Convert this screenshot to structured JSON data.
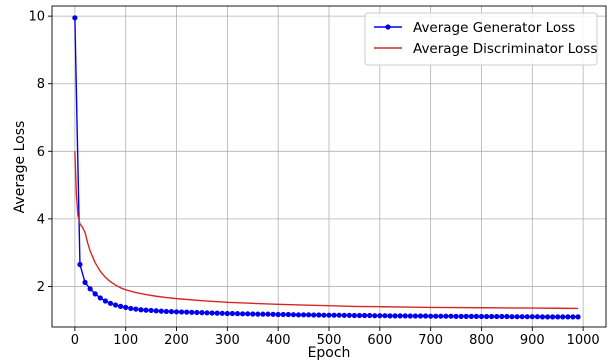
{
  "chart_data": {
    "type": "line",
    "title": "",
    "xlabel": "Epoch",
    "ylabel": "Average Loss",
    "xlim": [
      -45,
      1045
    ],
    "ylim": [
      0.8,
      10.3
    ],
    "xticks": [
      0,
      100,
      200,
      300,
      400,
      500,
      600,
      700,
      800,
      900,
      1000
    ],
    "yticks": [
      2,
      4,
      6,
      8,
      10
    ],
    "xtick_labels": [
      "0",
      "100",
      "200",
      "300",
      "400",
      "500",
      "600",
      "700",
      "800",
      "900",
      "1000"
    ],
    "ytick_labels": [
      "2",
      "4",
      "6",
      "8",
      "10"
    ],
    "grid": true,
    "legend_position": "top-right",
    "series": [
      {
        "name": "Average Generator Loss",
        "color": "#0000ee",
        "marker": "circle",
        "x": [
          0,
          10,
          20,
          30,
          40,
          50,
          60,
          70,
          80,
          90,
          100,
          110,
          120,
          130,
          140,
          150,
          160,
          170,
          180,
          190,
          200,
          210,
          220,
          230,
          240,
          250,
          260,
          270,
          280,
          290,
          300,
          310,
          320,
          330,
          340,
          350,
          360,
          370,
          380,
          390,
          400,
          410,
          420,
          430,
          440,
          450,
          460,
          470,
          480,
          490,
          500,
          510,
          520,
          530,
          540,
          550,
          560,
          570,
          580,
          590,
          600,
          610,
          620,
          630,
          640,
          650,
          660,
          670,
          680,
          690,
          700,
          710,
          720,
          730,
          740,
          750,
          760,
          770,
          780,
          790,
          800,
          810,
          820,
          830,
          840,
          850,
          860,
          870,
          880,
          890,
          900,
          910,
          920,
          930,
          940,
          950,
          960,
          970,
          980,
          990
        ],
        "values": [
          9.95,
          2.65,
          2.12,
          1.93,
          1.78,
          1.66,
          1.57,
          1.5,
          1.45,
          1.41,
          1.38,
          1.35,
          1.33,
          1.31,
          1.3,
          1.29,
          1.28,
          1.27,
          1.26,
          1.255,
          1.25,
          1.245,
          1.24,
          1.235,
          1.23,
          1.225,
          1.22,
          1.215,
          1.21,
          1.205,
          1.2,
          1.2,
          1.195,
          1.19,
          1.19,
          1.185,
          1.18,
          1.18,
          1.18,
          1.175,
          1.17,
          1.17,
          1.17,
          1.165,
          1.16,
          1.16,
          1.16,
          1.155,
          1.155,
          1.15,
          1.15,
          1.15,
          1.15,
          1.145,
          1.145,
          1.14,
          1.14,
          1.14,
          1.14,
          1.135,
          1.135,
          1.135,
          1.13,
          1.13,
          1.13,
          1.13,
          1.125,
          1.125,
          1.125,
          1.125,
          1.12,
          1.12,
          1.12,
          1.12,
          1.12,
          1.115,
          1.115,
          1.115,
          1.115,
          1.115,
          1.11,
          1.11,
          1.11,
          1.11,
          1.11,
          1.11,
          1.105,
          1.105,
          1.105,
          1.105,
          1.105,
          1.105,
          1.1,
          1.1,
          1.1,
          1.1,
          1.1,
          1.1,
          1.1,
          1.1
        ]
      },
      {
        "name": "Average Discriminator Loss",
        "color": "#d62728",
        "marker": "none",
        "x": [
          0,
          3,
          6,
          10,
          15,
          20,
          25,
          30,
          40,
          50,
          60,
          70,
          80,
          90,
          100,
          120,
          140,
          160,
          180,
          200,
          250,
          300,
          350,
          400,
          450,
          500,
          550,
          600,
          650,
          700,
          750,
          800,
          850,
          900,
          950,
          990
        ],
        "values": [
          6.0,
          4.7,
          4.1,
          3.85,
          3.75,
          3.6,
          3.3,
          3.05,
          2.7,
          2.45,
          2.27,
          2.14,
          2.04,
          1.96,
          1.9,
          1.82,
          1.76,
          1.71,
          1.67,
          1.64,
          1.58,
          1.53,
          1.5,
          1.47,
          1.45,
          1.43,
          1.41,
          1.4,
          1.39,
          1.38,
          1.375,
          1.37,
          1.365,
          1.36,
          1.355,
          1.35
        ]
      }
    ]
  }
}
